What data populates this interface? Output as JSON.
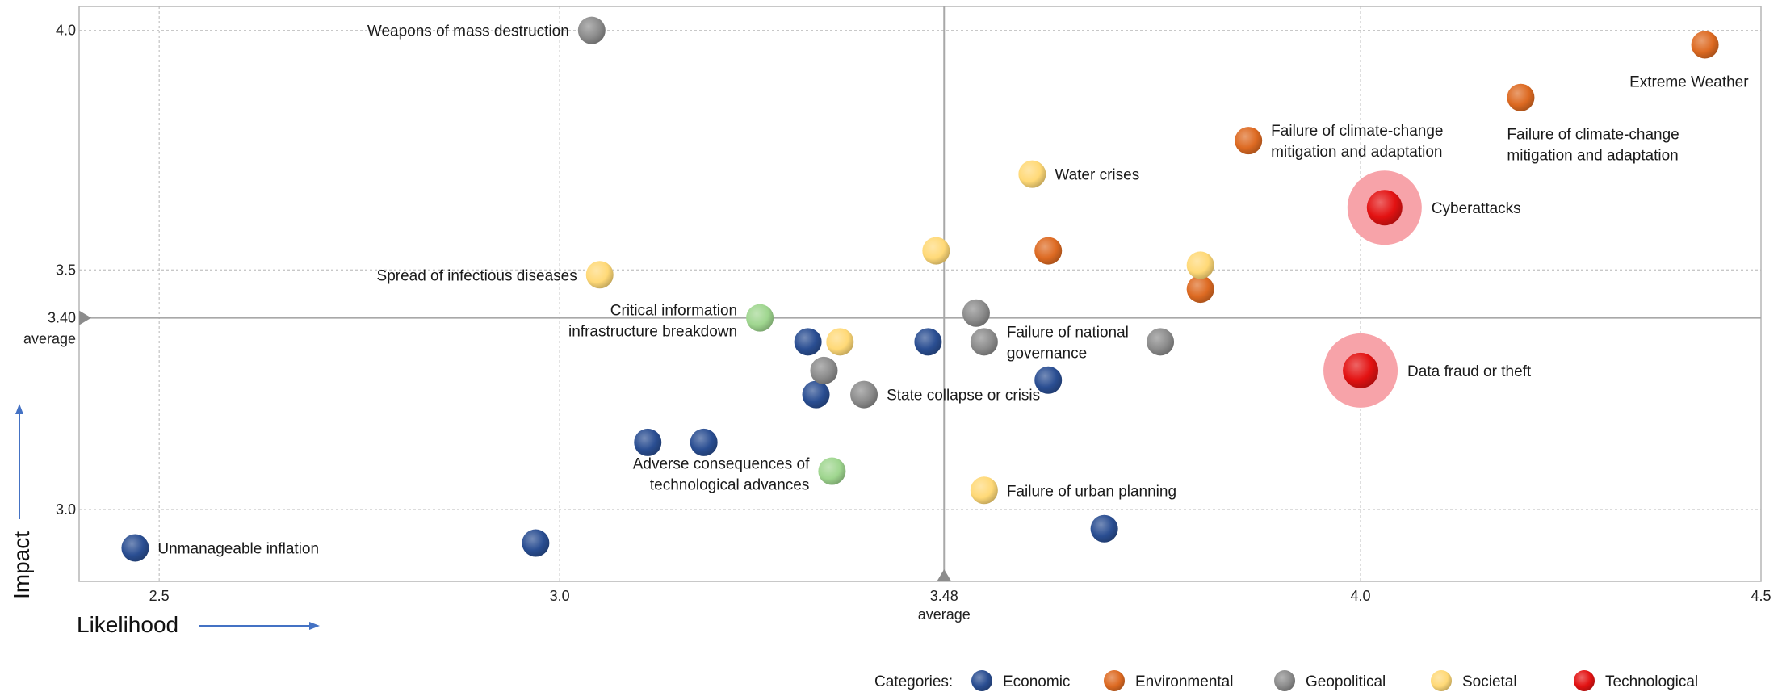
{
  "chart_data": {
    "type": "scatter",
    "title": "",
    "xlabel": "Likelihood",
    "ylabel": "Impact",
    "xlim": [
      2.4,
      4.5
    ],
    "ylim": [
      2.85,
      4.05
    ],
    "xticks": [
      {
        "v": 2.5,
        "t": "2.5"
      },
      {
        "v": 3.0,
        "t": "3.0"
      },
      {
        "v": 3.48,
        "t": "3.48"
      },
      {
        "v": 4.0,
        "t": "4.0"
      },
      {
        "v": 4.5,
        "t": "4.5"
      }
    ],
    "yticks": [
      {
        "v": 3.0,
        "t": "3.0"
      },
      {
        "v": 3.5,
        "t": "3.5"
      },
      {
        "v": 4.0,
        "t": "4.0"
      }
    ],
    "average_x": {
      "value": 3.48,
      "label": "average"
    },
    "average_y": {
      "value": 3.4,
      "value_label": "3.40",
      "label": "average"
    },
    "grid": true,
    "legend_title": "Categories:",
    "legend_position": "bottom",
    "categories": [
      {
        "key": "economic",
        "name": "Economic",
        "color": "#2a4e92"
      },
      {
        "key": "environmental",
        "name": "Environmental",
        "color": "#dd6a22"
      },
      {
        "key": "geopolitical",
        "name": "Geopolitical",
        "color": "#8c8c8c"
      },
      {
        "key": "societal",
        "name": "Societal",
        "color": "#ffd977"
      },
      {
        "key": "technological",
        "name": "Technological",
        "color": "#e31212"
      },
      {
        "key": "technological-light",
        "name": "",
        "color": "#9fd68f"
      }
    ],
    "points": [
      {
        "label": "Unmanageable inflation",
        "x": 2.47,
        "y": 2.92,
        "cat": "economic",
        "lines": [
          "Unmanageable inflation"
        ],
        "anchor": "right"
      },
      {
        "x": 2.97,
        "y": 2.93,
        "cat": "economic"
      },
      {
        "x": 3.11,
        "y": 3.14,
        "cat": "economic"
      },
      {
        "x": 3.18,
        "y": 3.14,
        "cat": "economic"
      },
      {
        "x": 3.31,
        "y": 3.35,
        "cat": "economic"
      },
      {
        "x": 3.32,
        "y": 3.24,
        "cat": "economic"
      },
      {
        "x": 3.46,
        "y": 3.35,
        "cat": "economic"
      },
      {
        "x": 3.61,
        "y": 3.27,
        "cat": "economic"
      },
      {
        "x": 3.68,
        "y": 2.96,
        "cat": "economic"
      },
      {
        "label": "Failure of climate-change mitigation and adaptation",
        "x": 3.86,
        "y": 3.77,
        "cat": "environmental",
        "lines": [
          "Failure of climate-change",
          "mitigation and adaptation"
        ],
        "anchor": "right"
      },
      {
        "x": 3.61,
        "y": 3.54,
        "cat": "environmental"
      },
      {
        "x": 3.8,
        "y": 3.46,
        "cat": "environmental"
      },
      {
        "label": "Failure of climate-change mitigation and adaptation",
        "x": 4.2,
        "y": 3.86,
        "cat": "environmental",
        "lines": [
          "Failure of climate-change",
          "mitigation and adaptation"
        ],
        "anchor": "below"
      },
      {
        "label": "Extreme Weather",
        "x": 4.43,
        "y": 3.97,
        "cat": "environmental",
        "lines": [
          "Extreme Weather"
        ],
        "anchor": "below-left"
      },
      {
        "label": "Weapons of mass destruction",
        "x": 3.04,
        "y": 4.0,
        "cat": "geopolitical",
        "lines": [
          "Weapons of mass destruction"
        ],
        "anchor": "left"
      },
      {
        "x": 3.33,
        "y": 3.29,
        "cat": "geopolitical"
      },
      {
        "label": "State collapse or crisis",
        "x": 3.38,
        "y": 3.24,
        "cat": "geopolitical",
        "lines": [
          "State collapse or crisis"
        ],
        "anchor": "right"
      },
      {
        "x": 3.52,
        "y": 3.41,
        "cat": "geopolitical"
      },
      {
        "label": "Failure of national governance",
        "x": 3.53,
        "y": 3.35,
        "cat": "geopolitical",
        "lines": [
          "Failure of national",
          "governance"
        ],
        "anchor": "right"
      },
      {
        "x": 3.75,
        "y": 3.35,
        "cat": "geopolitical"
      },
      {
        "label": "Spread of infectious diseases",
        "x": 3.05,
        "y": 3.49,
        "cat": "societal",
        "lines": [
          "Spread of infectious diseases"
        ],
        "anchor": "left"
      },
      {
        "x": 3.35,
        "y": 3.35,
        "cat": "societal"
      },
      {
        "x": 3.47,
        "y": 3.54,
        "cat": "societal"
      },
      {
        "label": "Water crises",
        "x": 3.59,
        "y": 3.7,
        "cat": "societal",
        "lines": [
          "Water crises"
        ],
        "anchor": "right"
      },
      {
        "label": "Failure of urban planning",
        "x": 3.53,
        "y": 3.04,
        "cat": "societal",
        "lines": [
          "Failure of urban planning"
        ],
        "anchor": "right"
      },
      {
        "x": 3.8,
        "y": 3.51,
        "cat": "societal"
      },
      {
        "label": "Critical information infrastructure breakdown",
        "x": 3.25,
        "y": 3.4,
        "cat": "technological-light",
        "lines": [
          "Critical information",
          "infrastructure breakdown"
        ],
        "anchor": "left"
      },
      {
        "label": "Adverse consequences of technological advances",
        "x": 3.34,
        "y": 3.08,
        "cat": "technological-light",
        "lines": [
          "Adverse consequences of",
          "technological advances"
        ],
        "anchor": "left"
      },
      {
        "label": "Cyberattacks",
        "x": 4.03,
        "y": 3.63,
        "cat": "technological",
        "highlight": true,
        "lines": [
          "Cyberattacks"
        ],
        "anchor": "right-far"
      },
      {
        "label": "Data fraud or theft",
        "x": 4.0,
        "y": 3.29,
        "cat": "technological",
        "highlight": true,
        "lines": [
          "Data fraud or theft"
        ],
        "anchor": "right-far"
      }
    ]
  }
}
